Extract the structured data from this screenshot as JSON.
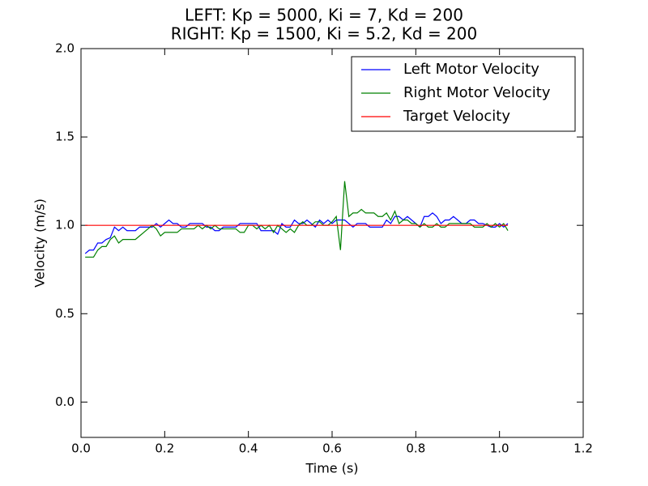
{
  "chart_data": {
    "type": "line",
    "title": [
      "LEFT: Kp = 5000, Ki = 7, Kd = 200",
      "RIGHT: Kp = 1500, Ki = 5.2, Kd = 200"
    ],
    "x_label": "Time (s)",
    "y_label": "Velocity (m/s)",
    "xlim": [
      0,
      1.2
    ],
    "ylim": [
      -0.2,
      2.0
    ],
    "xticks": [
      {
        "value": 0,
        "label": "0.0"
      },
      0.2,
      0.4,
      0.6,
      0.8,
      {
        "value": 1,
        "label": "1.0"
      },
      1.2
    ],
    "yticks": [
      {
        "value": 0,
        "label": "0.0"
      },
      0.5,
      {
        "value": 1,
        "label": "1.0"
      },
      1.5,
      {
        "value": 2,
        "label": "2.0"
      }
    ],
    "legend": "upper right",
    "grid": false,
    "x": [
      0.01,
      0.02,
      0.03,
      0.04,
      0.05,
      0.06,
      0.07,
      0.08,
      0.09,
      0.1,
      0.11,
      0.12,
      0.13,
      0.14,
      0.15,
      0.16,
      0.17,
      0.18,
      0.19,
      0.2,
      0.21,
      0.22,
      0.23,
      0.24,
      0.25,
      0.26,
      0.27,
      0.28,
      0.29,
      0.3,
      0.31,
      0.32,
      0.33,
      0.34,
      0.35,
      0.36,
      0.37,
      0.38,
      0.39,
      0.4,
      0.41,
      0.42,
      0.43,
      0.44,
      0.45,
      0.46,
      0.47,
      0.48,
      0.49,
      0.5,
      0.51,
      0.52,
      0.53,
      0.54,
      0.55,
      0.56,
      0.57,
      0.58,
      0.59,
      0.6,
      0.61,
      0.62,
      0.63,
      0.64,
      0.65,
      0.66,
      0.67,
      0.68,
      0.69,
      0.7,
      0.71,
      0.72,
      0.73,
      0.74,
      0.75,
      0.76,
      0.77,
      0.78,
      0.79,
      0.8,
      0.81,
      0.82,
      0.83,
      0.84,
      0.85,
      0.86,
      0.87,
      0.88,
      0.89,
      0.9,
      0.91,
      0.92,
      0.93,
      0.94,
      0.95,
      0.96,
      0.97,
      0.98,
      0.99,
      1.0,
      1.01,
      1.02
    ],
    "series": [
      {
        "name": "Left Motor Velocity",
        "color": "#0000ff",
        "values": [
          0.84,
          0.86,
          0.86,
          0.9,
          0.9,
          0.92,
          0.93,
          0.99,
          0.97,
          0.99,
          0.97,
          0.97,
          0.97,
          0.99,
          0.99,
          0.99,
          0.99,
          1.01,
          0.99,
          1.01,
          1.03,
          1.01,
          1.01,
          0.99,
          0.99,
          1.01,
          1.01,
          1.01,
          1.01,
          0.99,
          0.99,
          0.97,
          0.97,
          0.99,
          0.99,
          0.99,
          0.99,
          1.01,
          1.01,
          1.01,
          1.01,
          1.01,
          0.97,
          0.97,
          0.97,
          0.97,
          0.95,
          1.01,
          0.99,
          0.99,
          1.03,
          1.01,
          1.01,
          1.03,
          1.01,
          0.99,
          1.03,
          1.01,
          1.03,
          1.01,
          1.03,
          1.03,
          1.03,
          1.01,
          0.99,
          1.01,
          1.01,
          1.01,
          0.99,
          0.99,
          0.99,
          0.99,
          1.03,
          1.01,
          1.05,
          1.05,
          1.03,
          1.05,
          1.03,
          1.01,
          0.99,
          1.05,
          1.05,
          1.07,
          1.05,
          1.01,
          1.03,
          1.03,
          1.05,
          1.03,
          1.01,
          1.01,
          1.03,
          1.03,
          1.01,
          1.01,
          1.0,
          0.99,
          0.99,
          1.01,
          0.99,
          1.01
        ]
      },
      {
        "name": "Right Motor Velocity",
        "color": "#008000",
        "values": [
          0.82,
          0.82,
          0.82,
          0.86,
          0.88,
          0.88,
          0.92,
          0.94,
          0.9,
          0.92,
          0.92,
          0.92,
          0.92,
          0.94,
          0.96,
          0.98,
          1.0,
          0.98,
          0.94,
          0.96,
          0.96,
          0.96,
          0.96,
          0.98,
          0.98,
          0.98,
          0.98,
          1.0,
          0.98,
          1.0,
          0.98,
          1.0,
          0.98,
          0.98,
          0.98,
          0.98,
          0.98,
          0.96,
          0.96,
          1.0,
          1.0,
          0.98,
          1.0,
          0.98,
          1.0,
          0.96,
          1.0,
          0.98,
          0.96,
          0.98,
          0.96,
          1.0,
          1.02,
          1.0,
          1.0,
          1.02,
          1.02,
          1.0,
          1.0,
          1.02,
          1.05,
          0.86,
          1.25,
          1.05,
          1.07,
          1.07,
          1.09,
          1.07,
          1.07,
          1.07,
          1.05,
          1.05,
          1.07,
          1.03,
          1.08,
          1.01,
          1.03,
          1.03,
          1.01,
          1.01,
          0.99,
          1.01,
          0.99,
          0.99,
          1.01,
          0.99,
          0.99,
          1.01,
          1.01,
          1.01,
          1.01,
          1.01,
          1.01,
          0.99,
          0.99,
          0.99,
          1.01,
          0.99,
          1.01,
          0.99,
          1.01,
          0.97
        ]
      },
      {
        "name": "Target Velocity",
        "color": "#ff0000",
        "x": [
          0.01,
          1.02
        ],
        "values": [
          1.0,
          1.0
        ]
      }
    ]
  }
}
